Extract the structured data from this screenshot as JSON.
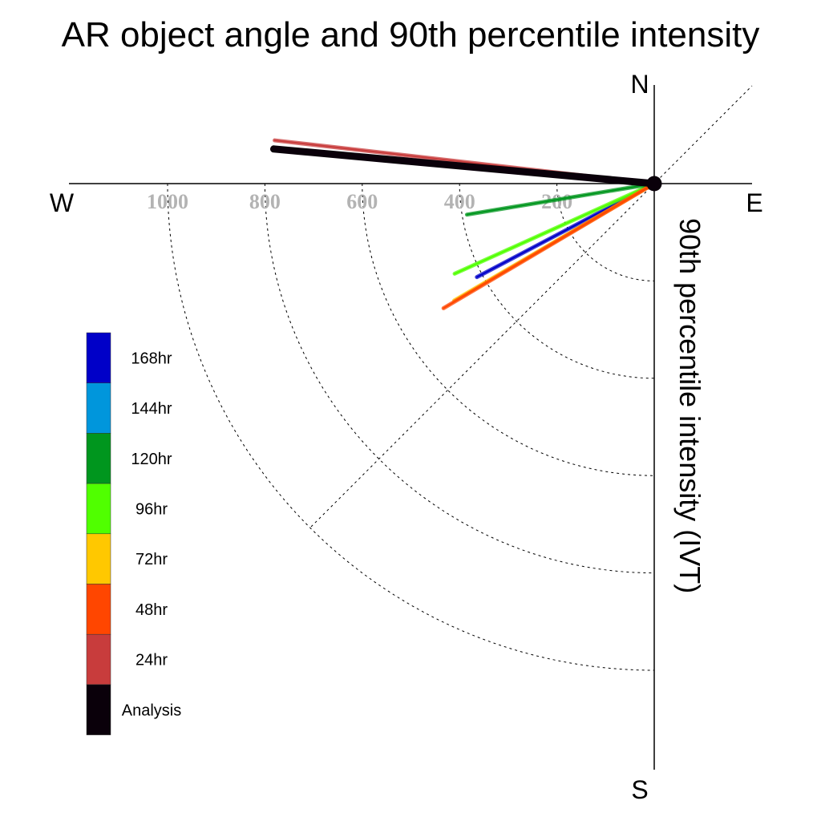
{
  "chart_data": {
    "type": "polar-vector",
    "title": "AR object angle and 90th percentile intensity",
    "axis_label": "90th percentile intensity (IVT)",
    "compass": {
      "north": "N",
      "south": "S",
      "east": "E",
      "west": "W"
    },
    "radial_ticks": [
      200,
      400,
      600,
      800,
      1000
    ],
    "radial_tick_labels": [
      "200",
      "400",
      "600",
      "800",
      "1000"
    ],
    "rmax": 1200,
    "series": [
      {
        "name": "168hr",
        "color": "#0000c8",
        "angle_deg": 207.8,
        "intensity": 412
      },
      {
        "name": "144hr",
        "color": "#0096dc",
        "angle_deg": null,
        "intensity": null
      },
      {
        "name": "120hr",
        "color": "#00961e",
        "angle_deg": 189.4,
        "intensity": 390
      },
      {
        "name": "96hr",
        "color": "#50ff00",
        "angle_deg": 204.3,
        "intensity": 450
      },
      {
        "name": "72hr",
        "color": "#ffc800",
        "angle_deg": 210.3,
        "intensity": 476
      },
      {
        "name": "48hr",
        "color": "#ff4600",
        "angle_deg": 210.6,
        "intensity": 503
      },
      {
        "name": "24hr",
        "color": "#c83c3c",
        "angle_deg": 173.5,
        "intensity": 785
      },
      {
        "name": "Analysis",
        "color": "#0a000a",
        "angle_deg": 174.8,
        "intensity": 785
      }
    ]
  }
}
